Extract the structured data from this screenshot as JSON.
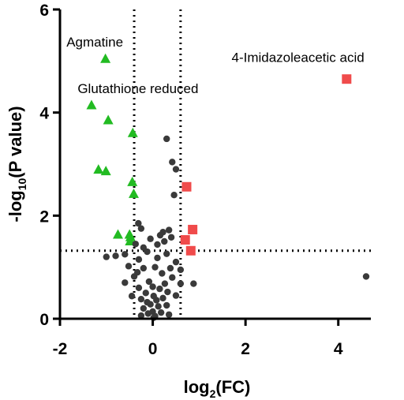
{
  "chart_data": {
    "type": "scatter",
    "title": "",
    "xlabel_base": "log",
    "xlabel_sub": "2",
    "xlabel_rest": "(FC)",
    "ylabel_base": "-log",
    "ylabel_sub": "10",
    "ylabel_rest": "(P value)",
    "xlim": [
      -2,
      4.6
    ],
    "ylim": [
      0,
      6
    ],
    "x_ticks": [
      -2,
      0,
      2,
      4
    ],
    "y_ticks": [
      0,
      2,
      4,
      6
    ],
    "thresholds": {
      "x": [
        -0.4,
        0.6
      ],
      "y": [
        1.32
      ]
    },
    "colors": {
      "up": "#f04b4b",
      "down": "#22bb22",
      "ns": "#3a3a3a"
    },
    "annotations": [
      {
        "text": "Agmatine",
        "x": -1.86,
        "y": 5.28
      },
      {
        "text": "Glutathione reduced",
        "x": -1.62,
        "y": 4.38
      },
      {
        "text": "4-Imidazoleacetic acid",
        "x": 1.7,
        "y": 4.98
      }
    ],
    "series": [
      {
        "marker": "square",
        "color_key": "up",
        "points": [
          [
            4.18,
            4.65
          ],
          [
            0.73,
            2.56
          ],
          [
            0.86,
            1.73
          ],
          [
            0.7,
            1.53
          ],
          [
            0.82,
            1.32
          ]
        ]
      },
      {
        "marker": "triangle",
        "color_key": "down",
        "points": [
          [
            -1.02,
            5.04
          ],
          [
            -1.32,
            4.14
          ],
          [
            -0.96,
            3.85
          ],
          [
            -0.43,
            3.6
          ],
          [
            -1.17,
            2.89
          ],
          [
            -1.01,
            2.86
          ],
          [
            -0.44,
            2.65
          ],
          [
            -0.41,
            2.42
          ],
          [
            -0.75,
            1.63
          ],
          [
            -0.5,
            1.63
          ],
          [
            -0.48,
            1.58
          ],
          [
            -0.49,
            1.5
          ]
        ]
      },
      {
        "marker": "circle",
        "color_key": "ns",
        "points": [
          [
            0.3,
            3.49
          ],
          [
            0.42,
            3.04
          ],
          [
            0.5,
            2.9
          ],
          [
            0.46,
            2.4
          ],
          [
            -0.31,
            1.85
          ],
          [
            -0.25,
            1.75
          ],
          [
            0.22,
            1.68
          ],
          [
            0.35,
            1.72
          ],
          [
            -0.6,
            1.25
          ],
          [
            -0.8,
            1.22
          ],
          [
            -1.0,
            1.2
          ],
          [
            -0.37,
            1.45
          ],
          [
            -0.2,
            1.38
          ],
          [
            -0.05,
            1.55
          ],
          [
            0.1,
            1.44
          ],
          [
            0.25,
            1.5
          ],
          [
            0.4,
            1.58
          ],
          [
            -0.3,
            1.15
          ],
          [
            0.1,
            1.18
          ],
          [
            0.3,
            1.26
          ],
          [
            0.5,
            1.1
          ],
          [
            0.6,
            0.95
          ],
          [
            -0.2,
            0.98
          ],
          [
            0.05,
            1.0
          ],
          [
            0.2,
            0.88
          ],
          [
            -0.4,
            0.82
          ],
          [
            0.42,
            0.8
          ],
          [
            -0.6,
            0.7
          ],
          [
            0.6,
            0.68
          ],
          [
            0.88,
            0.68
          ],
          [
            -0.3,
            0.6
          ],
          [
            0.0,
            0.62
          ],
          [
            0.15,
            0.58
          ],
          [
            0.32,
            0.52
          ],
          [
            -0.15,
            0.5
          ],
          [
            0.5,
            0.45
          ],
          [
            -0.45,
            0.44
          ],
          [
            -0.25,
            0.38
          ],
          [
            0.08,
            0.36
          ],
          [
            0.22,
            0.4
          ],
          [
            -0.05,
            0.28
          ],
          [
            0.12,
            0.24
          ],
          [
            0.3,
            0.26
          ],
          [
            -0.2,
            0.2
          ],
          [
            0.0,
            0.14
          ],
          [
            0.18,
            0.12
          ],
          [
            -0.1,
            0.1
          ],
          [
            0.05,
            0.05
          ],
          [
            -0.25,
            0.06
          ],
          [
            0.35,
            0.08
          ],
          [
            0.02,
            0.02
          ],
          [
            -0.12,
            0.32
          ],
          [
            0.26,
            0.68
          ],
          [
            -0.08,
            0.72
          ],
          [
            0.38,
            0.98
          ],
          [
            -0.52,
            1.02
          ],
          [
            0.16,
            1.62
          ],
          [
            -0.12,
            1.3
          ],
          [
            0.02,
            0.44
          ],
          [
            -0.33,
            0.9
          ],
          [
            4.6,
            0.82
          ]
        ]
      }
    ]
  }
}
